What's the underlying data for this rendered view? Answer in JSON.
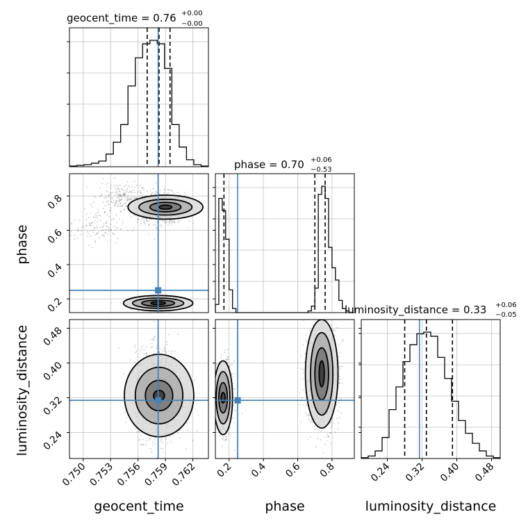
{
  "chart_data": {
    "type": "corner",
    "parameters": [
      "geocent_time",
      "phase",
      "luminosity_distance"
    ],
    "truths": {
      "geocent_time": 0.7582,
      "phase": 0.25,
      "luminosity_distance": 0.314
    },
    "colors": {
      "truth": "#4682b4",
      "hist": "#000000",
      "grid": "#c0c0c0"
    },
    "titles": {
      "geocent_time": {
        "label": "geocent_time = 0.76",
        "plus": "+0.00",
        "minus": "−0.00"
      },
      "phase": {
        "label": "phase = 0.70",
        "plus": "+0.06",
        "minus": "−0.53"
      },
      "luminosity_distance": {
        "label": "luminosity_distance = 0.33",
        "plus": "+0.06",
        "minus": "−0.05"
      }
    },
    "axis_labels": {
      "x": [
        "geocent_time",
        "phase",
        "luminosity_distance"
      ],
      "y": [
        "phase",
        "luminosity_distance"
      ]
    },
    "ticks": {
      "geocent_time": [
        "0.750",
        "0.753",
        "0.756",
        "0.759",
        "0.762"
      ],
      "phase": [
        "0.2",
        "0.4",
        "0.6",
        "0.8"
      ],
      "luminosity_distance": [
        "0.24",
        "0.32",
        "0.40",
        "0.48"
      ]
    },
    "ranges": {
      "geocent_time": [
        0.7485,
        0.7637
      ],
      "phase": [
        0.12,
        0.93
      ],
      "luminosity_distance": [
        0.18,
        0.5
      ]
    },
    "marginals": {
      "geocent_time": {
        "edges": [
          0.7485,
          0.7493,
          0.7501,
          0.7509,
          0.7517,
          0.7525,
          0.7533,
          0.7541,
          0.7549,
          0.7557,
          0.7565,
          0.7573,
          0.7581,
          0.7589,
          0.7597,
          0.7605,
          0.7613,
          0.7621,
          0.7629,
          0.7637
        ],
        "counts": [
          1,
          2,
          3,
          5,
          8,
          18,
          35,
          60,
          115,
          155,
          175,
          180,
          175,
          140,
          60,
          28,
          10,
          3,
          1
        ],
        "quantiles": [
          0.757,
          0.7583,
          0.7595
        ]
      },
      "phase": {
        "edges": [
          0.12,
          0.14,
          0.16,
          0.18,
          0.2,
          0.22,
          0.24,
          0.26,
          0.28,
          0.3,
          0.32,
          0.34,
          0.36,
          0.38,
          0.4,
          0.42,
          0.44,
          0.46,
          0.48,
          0.5,
          0.52,
          0.54,
          0.56,
          0.58,
          0.6,
          0.62,
          0.64,
          0.66,
          0.68,
          0.7,
          0.72,
          0.74,
          0.76,
          0.78,
          0.8,
          0.82,
          0.84,
          0.86,
          0.88,
          0.9,
          0.92
        ],
        "counts": [
          10,
          140,
          125,
          90,
          28,
          5,
          0,
          0,
          0,
          0,
          0,
          0,
          0,
          0,
          0,
          0,
          0,
          0,
          0,
          0,
          0,
          0,
          0,
          0,
          0,
          0,
          0,
          2,
          8,
          30,
          145,
          155,
          140,
          80,
          55,
          40,
          15,
          5,
          2,
          0
        ],
        "quantiles": [
          0.17,
          0.7,
          0.76
        ]
      },
      "luminosity_distance": {
        "edges": [
          0.18,
          0.196,
          0.212,
          0.228,
          0.244,
          0.26,
          0.276,
          0.292,
          0.308,
          0.324,
          0.34,
          0.356,
          0.372,
          0.388,
          0.404,
          0.42,
          0.436,
          0.452,
          0.468,
          0.484,
          0.5
        ],
        "counts": [
          1,
          3,
          9,
          25,
          58,
          85,
          115,
          135,
          148,
          150,
          145,
          120,
          95,
          68,
          45,
          30,
          18,
          9,
          3,
          1
        ],
        "quantiles": [
          0.28,
          0.33,
          0.39
        ]
      }
    },
    "joint": {
      "phase_vs_geocent_time": {
        "clusters": [
          {
            "x": 0.7585,
            "y": 0.73,
            "sx": 0.0013,
            "sy": 0.045,
            "n": 850
          },
          {
            "x": 0.758,
            "y": 0.17,
            "sx": 0.0013,
            "sy": 0.018,
            "n": 500
          },
          {
            "x": 0.754,
            "y": 0.8,
            "sx": 0.0012,
            "sy": 0.04,
            "n": 180
          },
          {
            "x": 0.7515,
            "y": 0.62,
            "sx": 0.0015,
            "sy": 0.05,
            "n": 130
          }
        ],
        "contours": [
          {
            "cx": 0.759,
            "cy": 0.735,
            "rx": [
              0.0007,
              0.0017,
              0.0029,
              0.0041
            ],
            "ry": [
              0.012,
              0.028,
              0.046,
              0.07
            ]
          },
          {
            "cx": 0.7582,
            "cy": 0.175,
            "rx": [
              0.0008,
              0.0018,
              0.0028,
              0.0038
            ],
            "ry": [
              0.008,
              0.018,
              0.03,
              0.045
            ]
          }
        ]
      },
      "luminosity_distance_vs_geocent_time": {
        "clusters": [
          {
            "x": 0.7583,
            "y": 0.33,
            "sx": 0.0013,
            "sy": 0.05,
            "n": 1400
          }
        ],
        "contours": [
          {
            "cx": 0.7583,
            "cy": 0.325,
            "rx": [
              0.0006,
              0.0015,
              0.0026,
              0.0038
            ],
            "ry": [
              0.012,
              0.035,
              0.065,
              0.095
            ]
          }
        ]
      },
      "luminosity_distance_vs_phase": {
        "clusters": [
          {
            "x": 0.17,
            "y": 0.32,
            "sx": 0.025,
            "sy": 0.04,
            "n": 550
          },
          {
            "x": 0.74,
            "y": 0.37,
            "sx": 0.05,
            "sy": 0.06,
            "n": 850
          }
        ],
        "contours": [
          {
            "cx": 0.165,
            "cy": 0.32,
            "rx": [
              0.012,
              0.025,
              0.04,
              0.055
            ],
            "ry": [
              0.012,
              0.035,
              0.06,
              0.085
            ]
          },
          {
            "cx": 0.74,
            "cy": 0.375,
            "rx": [
              0.015,
              0.04,
              0.065,
              0.095
            ],
            "ry": [
              0.03,
              0.06,
              0.095,
              0.125
            ]
          }
        ]
      }
    }
  }
}
